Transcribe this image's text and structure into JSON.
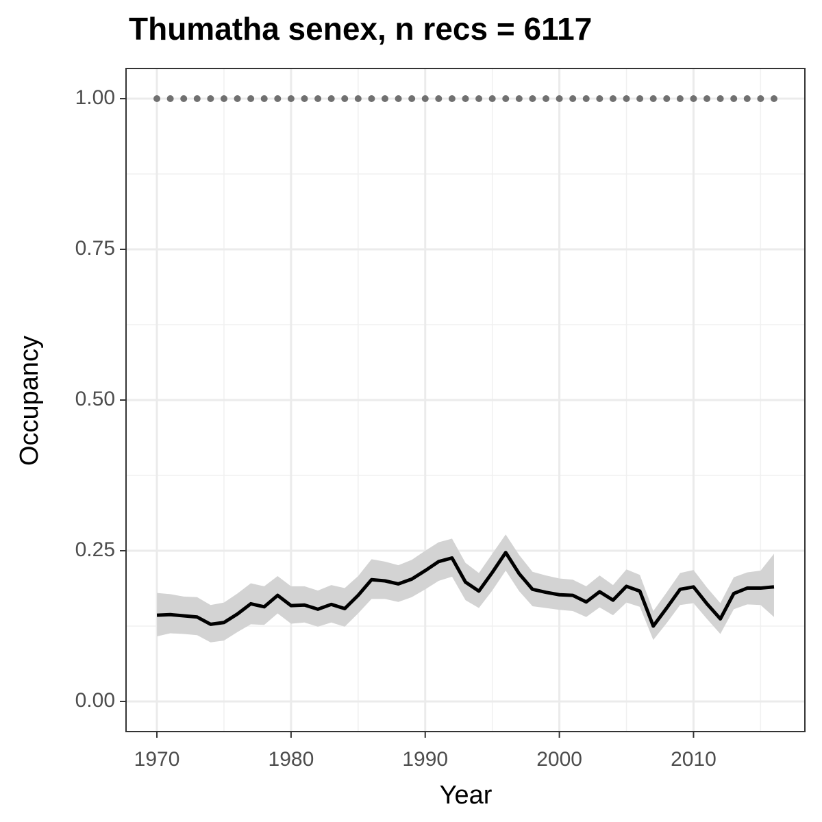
{
  "chart_data": {
    "type": "line",
    "title": "Thumatha senex, n recs = 6117",
    "xlabel": "Year",
    "ylabel": "Occupancy",
    "x": [
      1970,
      1971,
      1972,
      1973,
      1974,
      1975,
      1976,
      1977,
      1978,
      1979,
      1980,
      1981,
      1982,
      1983,
      1984,
      1985,
      1986,
      1987,
      1988,
      1989,
      1990,
      1991,
      1992,
      1993,
      1994,
      1995,
      1996,
      1997,
      1998,
      1999,
      2000,
      2001,
      2002,
      2003,
      2004,
      2005,
      2006,
      2007,
      2008,
      2009,
      2010,
      2011,
      2012,
      2013,
      2014,
      2015,
      2016
    ],
    "series": [
      {
        "color": "#000000",
        "style": "solid",
        "values": [
          0.143,
          0.144,
          0.142,
          0.14,
          0.128,
          0.131,
          0.145,
          0.162,
          0.157,
          0.176,
          0.159,
          0.16,
          0.153,
          0.161,
          0.154,
          0.176,
          0.202,
          0.2,
          0.195,
          0.203,
          0.217,
          0.232,
          0.238,
          0.198,
          0.183,
          0.214,
          0.247,
          0.212,
          0.186,
          0.181,
          0.177,
          0.176,
          0.165,
          0.182,
          0.168,
          0.191,
          0.183,
          0.125,
          0.155,
          0.186,
          0.19,
          0.162,
          0.137,
          0.179,
          0.188,
          0.188,
          0.19
        ]
      },
      {
        "color": "#707070",
        "style": "dotted",
        "values": [
          1,
          1,
          1,
          1,
          1,
          1,
          1,
          1,
          1,
          1,
          1,
          1,
          1,
          1,
          1,
          1,
          1,
          1,
          1,
          1,
          1,
          1,
          1,
          1,
          1,
          1,
          1,
          1,
          1,
          1,
          1,
          1,
          1,
          1,
          1,
          1,
          1,
          1,
          1,
          1,
          1,
          1,
          1,
          1,
          1,
          1,
          1
        ]
      }
    ],
    "band": {
      "color": "#d3d3d3",
      "lower": [
        0.108,
        0.113,
        0.112,
        0.11,
        0.098,
        0.101,
        0.115,
        0.128,
        0.127,
        0.146,
        0.129,
        0.131,
        0.124,
        0.131,
        0.124,
        0.146,
        0.17,
        0.17,
        0.165,
        0.173,
        0.186,
        0.2,
        0.207,
        0.168,
        0.155,
        0.184,
        0.217,
        0.183,
        0.158,
        0.155,
        0.152,
        0.15,
        0.14,
        0.156,
        0.143,
        0.164,
        0.157,
        0.102,
        0.13,
        0.16,
        0.163,
        0.137,
        0.112,
        0.153,
        0.161,
        0.16,
        0.14
      ],
      "upper": [
        0.18,
        0.178,
        0.174,
        0.173,
        0.16,
        0.164,
        0.179,
        0.196,
        0.191,
        0.208,
        0.191,
        0.191,
        0.184,
        0.193,
        0.188,
        0.208,
        0.236,
        0.232,
        0.226,
        0.235,
        0.25,
        0.264,
        0.27,
        0.23,
        0.213,
        0.245,
        0.277,
        0.243,
        0.215,
        0.209,
        0.204,
        0.202,
        0.191,
        0.209,
        0.193,
        0.219,
        0.21,
        0.15,
        0.181,
        0.213,
        0.218,
        0.189,
        0.163,
        0.206,
        0.214,
        0.217,
        0.245
      ]
    },
    "xlim": [
      1967.7,
      2018.3
    ],
    "ylim": [
      -0.05,
      1.05
    ],
    "xticks": [
      1970,
      1980,
      1990,
      2000,
      2010
    ],
    "xminorticks": [
      1975,
      1985,
      1995,
      2005,
      2015
    ],
    "yticks": [
      {
        "value": 0,
        "label": "0.00"
      },
      0.25,
      {
        "value": 0.5,
        "label": "0.50"
      },
      0.75,
      {
        "value": 1,
        "label": "1.00"
      }
    ],
    "yminorticks": [
      0.125,
      0.375,
      0.625,
      0.875
    ],
    "grid": true
  }
}
